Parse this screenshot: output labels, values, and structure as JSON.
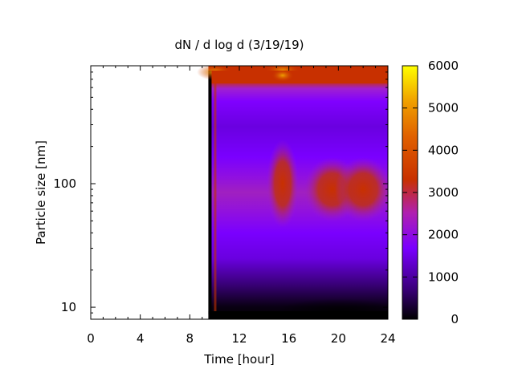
{
  "chart_data": {
    "type": "heatmap",
    "title": "dN / d log d (3/19/19)",
    "xlabel": "Time [hour]",
    "ylabel": "Particle size [nm]",
    "xlim": [
      0,
      24
    ],
    "ylim": [
      8,
      900
    ],
    "yscale": "log",
    "x_ticks": [
      0,
      4,
      8,
      12,
      16,
      20,
      24
    ],
    "x_tick_labels": [
      "0",
      "4",
      "8",
      "12",
      "16",
      "20",
      "24"
    ],
    "y_ticks": [
      10,
      100
    ],
    "y_tick_labels": [
      "10",
      "100"
    ],
    "colorbar": {
      "min": 0,
      "max": 6000,
      "ticks": [
        0,
        1000,
        2000,
        3000,
        4000,
        5000,
        6000
      ],
      "tick_labels": [
        "0",
        "1000",
        "2000",
        "3000",
        "4000",
        "5000",
        "6000"
      ],
      "colormap": "black-purple-red-orange-yellow",
      "colors": [
        "#000000",
        "#3a007a",
        "#7a00ff",
        "#c03090",
        "#c83000",
        "#e87800",
        "#ffd000",
        "#ffff00"
      ]
    },
    "data_start_hour": 9.5,
    "data_end_hour": 24,
    "features": [
      {
        "time": 10.0,
        "size_nm": 800,
        "value": 4500
      },
      {
        "time": 15.5,
        "size_nm": 100,
        "value": 3500
      },
      {
        "time": 19.5,
        "size_nm": 90,
        "value": 3300
      },
      {
        "time": 15.5,
        "size_nm": 820,
        "value": 5000
      },
      {
        "time": 22.0,
        "size_nm": 90,
        "value": 3000
      },
      {
        "time": 20.0,
        "size_nm": 9,
        "value": 200
      }
    ]
  }
}
